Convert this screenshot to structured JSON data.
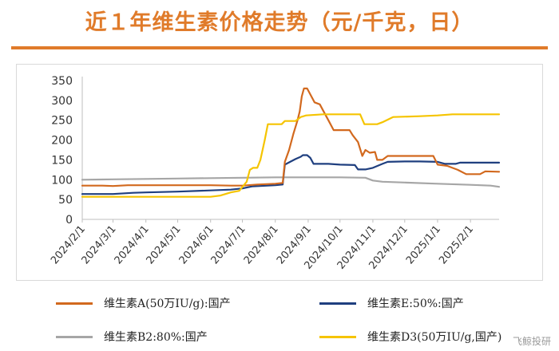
{
  "title": "近１年维生素价格走势（元/千克，日）",
  "title_color": "#e07b2a",
  "rule_color": "#e07b2a",
  "watermark": "飞鲸投研",
  "chart_data": {
    "type": "line",
    "title": "近１年维生素价格走势（元/千克，日）",
    "xlabel": "",
    "ylabel": "",
    "ylim": [
      0,
      350
    ],
    "yticks": [
      0,
      50,
      100,
      150,
      200,
      250,
      300,
      350
    ],
    "xlim": [
      "2024-02-01",
      "2025-02-28"
    ],
    "xtick_labels": [
      "2024/2/1",
      "2024/3/1",
      "2024/4/1",
      "2024/5/1",
      "2024/6/1",
      "2024/7/1",
      "2024/8/1",
      "2024/9/1",
      "2024/10/1",
      "2024/11/1",
      "2024/12/1",
      "2025/1/1",
      "2025/2/1"
    ],
    "grid": false,
    "legend_position": "bottom",
    "series": [
      {
        "name": "维生素A(50万IU/g):国产",
        "color": "#d2691e",
        "points": [
          [
            "2024-02-01",
            85
          ],
          [
            "2024-02-20",
            85
          ],
          [
            "2024-03-01",
            84
          ],
          [
            "2024-03-15",
            86
          ],
          [
            "2024-04-01",
            86
          ],
          [
            "2024-05-01",
            86
          ],
          [
            "2024-06-01",
            86
          ],
          [
            "2024-06-20",
            85
          ],
          [
            "2024-07-01",
            85
          ],
          [
            "2024-07-15",
            88
          ],
          [
            "2024-08-01",
            90
          ],
          [
            "2024-08-08",
            92
          ],
          [
            "2024-08-10",
            145
          ],
          [
            "2024-08-14",
            175
          ],
          [
            "2024-08-18",
            215
          ],
          [
            "2024-08-22",
            250
          ],
          [
            "2024-08-24",
            272
          ],
          [
            "2024-08-26",
            310
          ],
          [
            "2024-08-28",
            330
          ],
          [
            "2024-08-31",
            330
          ],
          [
            "2024-09-03",
            315
          ],
          [
            "2024-09-07",
            295
          ],
          [
            "2024-09-12",
            290
          ],
          [
            "2024-09-15",
            275
          ],
          [
            "2024-09-20",
            250
          ],
          [
            "2024-09-25",
            225
          ],
          [
            "2024-10-01",
            225
          ],
          [
            "2024-10-10",
            225
          ],
          [
            "2024-10-13",
            212
          ],
          [
            "2024-10-18",
            195
          ],
          [
            "2024-10-22",
            160
          ],
          [
            "2024-10-25",
            175
          ],
          [
            "2024-10-29",
            168
          ],
          [
            "2024-11-03",
            170
          ],
          [
            "2024-11-05",
            150
          ],
          [
            "2024-11-10",
            150
          ],
          [
            "2024-11-15",
            160
          ],
          [
            "2024-12-01",
            160
          ],
          [
            "2024-12-15",
            160
          ],
          [
            "2024-12-28",
            160
          ],
          [
            "2025-01-01",
            138
          ],
          [
            "2025-01-10",
            135
          ],
          [
            "2025-01-20",
            125
          ],
          [
            "2025-01-28",
            114
          ],
          [
            "2025-02-10",
            114
          ],
          [
            "2025-02-15",
            121
          ],
          [
            "2025-02-28",
            120
          ]
        ]
      },
      {
        "name": "维生素E:50%:国产",
        "color": "#1f3f7f",
        "points": [
          [
            "2024-02-01",
            64
          ],
          [
            "2024-03-01",
            64
          ],
          [
            "2024-03-20",
            67
          ],
          [
            "2024-04-01",
            68
          ],
          [
            "2024-05-01",
            70
          ],
          [
            "2024-06-01",
            73
          ],
          [
            "2024-06-20",
            75
          ],
          [
            "2024-07-01",
            78
          ],
          [
            "2024-07-10",
            83
          ],
          [
            "2024-08-01",
            86
          ],
          [
            "2024-08-08",
            88
          ],
          [
            "2024-08-10",
            138
          ],
          [
            "2024-08-15",
            145
          ],
          [
            "2024-08-20",
            152
          ],
          [
            "2024-08-25",
            158
          ],
          [
            "2024-08-27",
            162
          ],
          [
            "2024-08-31",
            162
          ],
          [
            "2024-09-03",
            155
          ],
          [
            "2024-09-06",
            140
          ],
          [
            "2024-09-20",
            140
          ],
          [
            "2024-10-01",
            138
          ],
          [
            "2024-10-15",
            137
          ],
          [
            "2024-10-18",
            126
          ],
          [
            "2024-10-25",
            126
          ],
          [
            "2024-11-01",
            130
          ],
          [
            "2024-11-10",
            140
          ],
          [
            "2024-11-15",
            145
          ],
          [
            "2024-12-01",
            146
          ],
          [
            "2024-12-15",
            146
          ],
          [
            "2025-01-01",
            145
          ],
          [
            "2025-01-08",
            140
          ],
          [
            "2025-01-18",
            140
          ],
          [
            "2025-01-22",
            143
          ],
          [
            "2025-02-28",
            143
          ]
        ]
      },
      {
        "name": "维生素B2:80%:国产",
        "color": "#a6a6a6",
        "points": [
          [
            "2024-02-01",
            100
          ],
          [
            "2024-03-01",
            101
          ],
          [
            "2024-04-01",
            102
          ],
          [
            "2024-05-01",
            103
          ],
          [
            "2024-06-01",
            104
          ],
          [
            "2024-07-01",
            105
          ],
          [
            "2024-08-01",
            106
          ],
          [
            "2024-09-01",
            106
          ],
          [
            "2024-10-01",
            106
          ],
          [
            "2024-10-25",
            105
          ],
          [
            "2024-11-01",
            98
          ],
          [
            "2024-11-10",
            95
          ],
          [
            "2024-12-01",
            93
          ],
          [
            "2025-01-01",
            90
          ],
          [
            "2025-02-01",
            87
          ],
          [
            "2025-02-20",
            85
          ],
          [
            "2025-02-28",
            82
          ]
        ]
      },
      {
        "name": "维生素D3(50万IU/g,国产)",
        "color": "#f5c400",
        "points": [
          [
            "2024-02-01",
            57
          ],
          [
            "2024-03-01",
            57
          ],
          [
            "2024-04-01",
            57
          ],
          [
            "2024-05-01",
            57
          ],
          [
            "2024-06-01",
            57
          ],
          [
            "2024-06-10",
            60
          ],
          [
            "2024-06-20",
            68
          ],
          [
            "2024-06-28",
            72
          ],
          [
            "2024-07-05",
            95
          ],
          [
            "2024-07-08",
            125
          ],
          [
            "2024-07-11",
            130
          ],
          [
            "2024-07-15",
            130
          ],
          [
            "2024-07-18",
            150
          ],
          [
            "2024-07-22",
            200
          ],
          [
            "2024-07-25",
            240
          ],
          [
            "2024-08-07",
            240
          ],
          [
            "2024-08-10",
            248
          ],
          [
            "2024-08-20",
            248
          ],
          [
            "2024-08-25",
            258
          ],
          [
            "2024-08-30",
            262
          ],
          [
            "2024-09-15",
            265
          ],
          [
            "2024-10-01",
            265
          ],
          [
            "2024-10-20",
            265
          ],
          [
            "2024-10-24",
            240
          ],
          [
            "2024-11-05",
            240
          ],
          [
            "2024-11-10",
            245
          ],
          [
            "2024-11-20",
            258
          ],
          [
            "2024-12-15",
            260
          ],
          [
            "2025-01-01",
            262
          ],
          [
            "2025-01-15",
            265
          ],
          [
            "2025-02-28",
            265
          ]
        ]
      }
    ]
  }
}
